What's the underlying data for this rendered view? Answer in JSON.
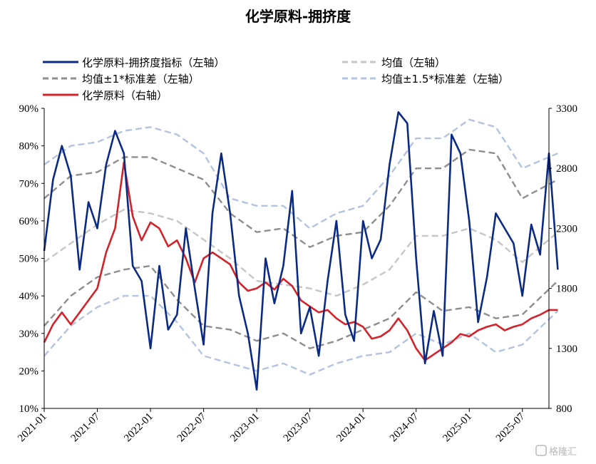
{
  "chart_data": {
    "type": "line",
    "title": "化学原料-拥挤度",
    "x_ticks": [
      "2021-01",
      "2021-07",
      "2022-01",
      "2022-07",
      "2023-01",
      "2023-07",
      "2024-01",
      "2024-07",
      "2025-01",
      "2025-07"
    ],
    "x_range": [
      "2021-01",
      "2025-10"
    ],
    "y_left": {
      "range": [
        10,
        90
      ],
      "ticks": [
        "10%",
        "20%",
        "30%",
        "40%",
        "50%",
        "60%",
        "70%",
        "80%",
        "90%"
      ]
    },
    "y_right": {
      "range": [
        800,
        3300
      ],
      "ticks": [
        "800",
        "1300",
        "1800",
        "2300",
        "2800",
        "3300"
      ]
    },
    "grid": false,
    "legend_position": "top",
    "series": [
      {
        "name": "化学原料-拥挤度指标（左轴）",
        "axis": "left",
        "color": "#0b2a83",
        "dash": "solid",
        "points": [
          [
            "2021-01",
            52
          ],
          [
            "2021-02",
            71
          ],
          [
            "2021-03",
            80
          ],
          [
            "2021-04",
            72
          ],
          [
            "2021-05",
            47
          ],
          [
            "2021-06",
            65
          ],
          [
            "2021-07",
            58
          ],
          [
            "2021-08",
            75
          ],
          [
            "2021-09",
            84
          ],
          [
            "2021-10",
            78
          ],
          [
            "2021-11",
            48
          ],
          [
            "2021-12",
            44
          ],
          [
            "2022-01",
            26
          ],
          [
            "2022-02",
            48
          ],
          [
            "2022-03",
            31
          ],
          [
            "2022-04",
            35
          ],
          [
            "2022-05",
            58
          ],
          [
            "2022-06",
            42
          ],
          [
            "2022-07",
            27
          ],
          [
            "2022-08",
            62
          ],
          [
            "2022-09",
            78
          ],
          [
            "2022-10",
            62
          ],
          [
            "2022-11",
            40
          ],
          [
            "2022-12",
            30
          ],
          [
            "2023-01",
            15
          ],
          [
            "2023-02",
            50
          ],
          [
            "2023-03",
            38
          ],
          [
            "2023-04",
            48
          ],
          [
            "2023-05",
            68
          ],
          [
            "2023-06",
            30
          ],
          [
            "2023-07",
            37
          ],
          [
            "2023-08",
            24
          ],
          [
            "2023-09",
            44
          ],
          [
            "2023-10",
            60
          ],
          [
            "2023-11",
            35
          ],
          [
            "2023-12",
            28
          ],
          [
            "2024-01",
            60
          ],
          [
            "2024-02",
            50
          ],
          [
            "2024-03",
            55
          ],
          [
            "2024-04",
            75
          ],
          [
            "2024-05",
            89
          ],
          [
            "2024-06",
            86
          ],
          [
            "2024-07",
            50
          ],
          [
            "2024-08",
            22
          ],
          [
            "2024-09",
            36
          ],
          [
            "2024-10",
            24
          ],
          [
            "2024-11",
            83
          ],
          [
            "2024-12",
            78
          ],
          [
            "2025-01",
            60
          ],
          [
            "2025-02",
            33
          ],
          [
            "2025-03",
            45
          ],
          [
            "2025-04",
            62
          ],
          [
            "2025-05",
            58
          ],
          [
            "2025-06",
            54
          ],
          [
            "2025-07",
            40
          ],
          [
            "2025-08",
            59
          ],
          [
            "2025-09",
            51
          ],
          [
            "2025-10",
            78
          ],
          [
            "2025-11",
            47
          ]
        ]
      },
      {
        "name": "均值（左轴）",
        "axis": "left",
        "color": "#c6c6c6",
        "dash": "dashed",
        "points": [
          [
            "2021-01",
            49
          ],
          [
            "2021-04",
            54
          ],
          [
            "2021-07",
            59
          ],
          [
            "2021-10",
            63
          ],
          [
            "2022-01",
            62
          ],
          [
            "2022-04",
            60
          ],
          [
            "2022-07",
            55
          ],
          [
            "2022-10",
            50
          ],
          [
            "2023-01",
            44
          ],
          [
            "2023-04",
            43
          ],
          [
            "2023-07",
            42
          ],
          [
            "2023-10",
            40
          ],
          [
            "2024-01",
            43
          ],
          [
            "2024-04",
            47
          ],
          [
            "2024-07",
            56
          ],
          [
            "2024-10",
            56
          ],
          [
            "2025-01",
            58
          ],
          [
            "2025-04",
            55
          ],
          [
            "2025-07",
            49
          ],
          [
            "2025-11",
            57
          ]
        ]
      },
      {
        "name": "均值±1*标准差（左轴）",
        "axis": "left",
        "color": "#8e8e8e",
        "dash": "dashed",
        "points": [
          [
            "2021-01",
            66
          ],
          [
            "2021-04",
            72
          ],
          [
            "2021-07",
            73
          ],
          [
            "2021-10",
            77
          ],
          [
            "2022-01",
            77
          ],
          [
            "2022-04",
            74
          ],
          [
            "2022-07",
            71
          ],
          [
            "2022-10",
            62
          ],
          [
            "2023-01",
            57
          ],
          [
            "2023-04",
            58
          ],
          [
            "2023-07",
            53
          ],
          [
            "2023-10",
            56
          ],
          [
            "2024-01",
            57
          ],
          [
            "2024-04",
            64
          ],
          [
            "2024-07",
            74
          ],
          [
            "2024-10",
            74
          ],
          [
            "2025-01",
            79
          ],
          [
            "2025-04",
            78
          ],
          [
            "2025-07",
            66
          ],
          [
            "2025-11",
            71
          ],
          [
            "2021-01",
            32
          ],
          [
            "2021-04",
            40
          ],
          [
            "2021-07",
            45
          ],
          [
            "2021-10",
            47
          ],
          [
            "2022-01",
            48
          ],
          [
            "2022-04",
            39
          ],
          [
            "2022-07",
            32
          ],
          [
            "2022-10",
            31
          ],
          [
            "2023-01",
            28
          ],
          [
            "2023-04",
            30
          ],
          [
            "2023-07",
            26
          ],
          [
            "2023-10",
            28
          ],
          [
            "2024-01",
            31
          ],
          [
            "2024-04",
            34
          ],
          [
            "2024-07",
            41
          ],
          [
            "2024-10",
            36
          ],
          [
            "2025-01",
            37
          ],
          [
            "2025-04",
            34
          ],
          [
            "2025-07",
            35
          ],
          [
            "2025-11",
            44
          ]
        ]
      },
      {
        "name": "均值±1.5*标准差（左轴）",
        "axis": "left",
        "color": "#b3c4e0",
        "dash": "dashed",
        "points": [
          [
            "2021-01",
            75
          ],
          [
            "2021-04",
            80
          ],
          [
            "2021-07",
            81
          ],
          [
            "2021-10",
            84
          ],
          [
            "2022-01",
            85
          ],
          [
            "2022-04",
            83
          ],
          [
            "2022-07",
            78
          ],
          [
            "2022-10",
            66
          ],
          [
            "2023-01",
            64
          ],
          [
            "2023-04",
            64
          ],
          [
            "2023-07",
            58
          ],
          [
            "2023-10",
            62
          ],
          [
            "2024-01",
            64
          ],
          [
            "2024-04",
            72
          ],
          [
            "2024-07",
            82
          ],
          [
            "2024-10",
            82
          ],
          [
            "2025-01",
            87
          ],
          [
            "2025-04",
            85
          ],
          [
            "2025-07",
            74
          ],
          [
            "2025-11",
            78
          ],
          [
            "2021-01",
            24
          ],
          [
            "2021-04",
            32
          ],
          [
            "2021-07",
            37
          ],
          [
            "2021-10",
            40
          ],
          [
            "2022-01",
            40
          ],
          [
            "2022-04",
            33
          ],
          [
            "2022-07",
            24
          ],
          [
            "2022-10",
            22
          ],
          [
            "2023-01",
            20
          ],
          [
            "2023-04",
            22
          ],
          [
            "2023-07",
            19
          ],
          [
            "2023-10",
            22
          ],
          [
            "2024-01",
            24
          ],
          [
            "2024-04",
            25
          ],
          [
            "2024-07",
            30
          ],
          [
            "2024-10",
            27
          ],
          [
            "2025-01",
            30
          ],
          [
            "2025-04",
            25
          ],
          [
            "2025-07",
            27
          ],
          [
            "2025-11",
            36
          ]
        ]
      },
      {
        "name": "化学原料（右轴）",
        "axis": "right",
        "color": "#d2232a",
        "dash": "solid",
        "points": [
          [
            "2021-01",
            1350
          ],
          [
            "2021-02",
            1500
          ],
          [
            "2021-03",
            1600
          ],
          [
            "2021-04",
            1500
          ],
          [
            "2021-05",
            1600
          ],
          [
            "2021-06",
            1700
          ],
          [
            "2021-07",
            1800
          ],
          [
            "2021-08",
            2100
          ],
          [
            "2021-09",
            2300
          ],
          [
            "2021-10",
            2850
          ],
          [
            "2021-11",
            2400
          ],
          [
            "2021-12",
            2200
          ],
          [
            "2022-01",
            2350
          ],
          [
            "2022-02",
            2300
          ],
          [
            "2022-03",
            2150
          ],
          [
            "2022-04",
            2200
          ],
          [
            "2022-05",
            2050
          ],
          [
            "2022-06",
            1850
          ],
          [
            "2022-07",
            2050
          ],
          [
            "2022-08",
            2100
          ],
          [
            "2022-09",
            2050
          ],
          [
            "2022-10",
            2000
          ],
          [
            "2022-11",
            1850
          ],
          [
            "2022-12",
            1780
          ],
          [
            "2023-01",
            1800
          ],
          [
            "2023-02",
            1850
          ],
          [
            "2023-03",
            1790
          ],
          [
            "2023-04",
            1880
          ],
          [
            "2023-05",
            1820
          ],
          [
            "2023-06",
            1700
          ],
          [
            "2023-07",
            1650
          ],
          [
            "2023-08",
            1600
          ],
          [
            "2023-09",
            1620
          ],
          [
            "2023-10",
            1550
          ],
          [
            "2023-11",
            1500
          ],
          [
            "2023-12",
            1520
          ],
          [
            "2024-01",
            1480
          ],
          [
            "2024-02",
            1380
          ],
          [
            "2024-03",
            1400
          ],
          [
            "2024-04",
            1450
          ],
          [
            "2024-05",
            1550
          ],
          [
            "2024-06",
            1450
          ],
          [
            "2024-07",
            1300
          ],
          [
            "2024-08",
            1200
          ],
          [
            "2024-09",
            1250
          ],
          [
            "2024-10",
            1300
          ],
          [
            "2024-11",
            1350
          ],
          [
            "2024-12",
            1420
          ],
          [
            "2025-01",
            1400
          ],
          [
            "2025-02",
            1450
          ],
          [
            "2025-03",
            1480
          ],
          [
            "2025-04",
            1500
          ],
          [
            "2025-05",
            1450
          ],
          [
            "2025-06",
            1480
          ],
          [
            "2025-07",
            1500
          ],
          [
            "2025-08",
            1550
          ],
          [
            "2025-09",
            1580
          ],
          [
            "2025-10",
            1620
          ],
          [
            "2025-11",
            1620
          ]
        ]
      }
    ]
  },
  "legend": {
    "items": [
      {
        "label": "化学原料-拥挤度指标（左轴）",
        "color": "#0b2a83",
        "dash": "solid"
      },
      {
        "label": "均值（左轴）",
        "color": "#c6c6c6",
        "dash": "dashed"
      },
      {
        "label": "均值±1*标准差（左轴）",
        "color": "#8e8e8e",
        "dash": "dashed"
      },
      {
        "label": "均值±1.5*标准差（左轴）",
        "color": "#b3c4e0",
        "dash": "dashed"
      },
      {
        "label": "化学原料（右轴）",
        "color": "#d2232a",
        "dash": "solid"
      }
    ]
  },
  "watermark": {
    "icon": "gelonghui-logo-icon",
    "text": "格隆汇"
  }
}
